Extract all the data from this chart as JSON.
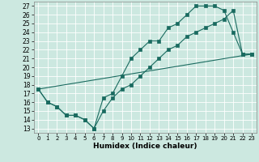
{
  "xlabel": "Humidex (Indice chaleur)",
  "bg_color": "#cce8e0",
  "grid_color": "#ffffff",
  "line_color": "#1a6b60",
  "xlim": [
    -0.5,
    23.5
  ],
  "ylim": [
    12.5,
    27.5
  ],
  "xticks": [
    0,
    1,
    2,
    3,
    4,
    5,
    6,
    7,
    8,
    9,
    10,
    11,
    12,
    13,
    14,
    15,
    16,
    17,
    18,
    19,
    20,
    21,
    22,
    23
  ],
  "yticks": [
    13,
    14,
    15,
    16,
    17,
    18,
    19,
    20,
    21,
    22,
    23,
    24,
    25,
    26,
    27
  ],
  "line1_x": [
    0,
    1,
    2,
    3,
    4,
    5,
    6,
    7,
    8,
    9,
    10,
    11,
    12,
    13,
    14,
    15,
    16,
    17,
    18,
    19,
    20,
    21,
    22,
    23
  ],
  "line1_y": [
    17.5,
    16.0,
    15.5,
    14.5,
    14.5,
    14.0,
    13.0,
    16.5,
    17.0,
    19.0,
    21.0,
    22.0,
    23.0,
    23.0,
    24.5,
    25.0,
    26.0,
    27.0,
    27.0,
    27.0,
    26.5,
    24.0,
    21.5,
    21.5
  ],
  "line2_x": [
    0,
    1,
    2,
    3,
    4,
    5,
    6,
    7,
    8,
    9,
    10,
    11,
    12,
    13,
    14,
    15,
    16,
    17,
    18,
    19,
    20,
    21,
    22,
    23
  ],
  "line2_y": [
    17.5,
    16.0,
    15.5,
    14.5,
    14.5,
    14.0,
    13.0,
    15.0,
    16.5,
    17.5,
    18.0,
    19.0,
    20.0,
    21.0,
    22.0,
    22.5,
    23.5,
    24.0,
    24.5,
    25.0,
    25.5,
    26.5,
    21.5,
    21.5
  ],
  "line3_x": [
    0,
    23
  ],
  "line3_y": [
    17.5,
    21.5
  ]
}
